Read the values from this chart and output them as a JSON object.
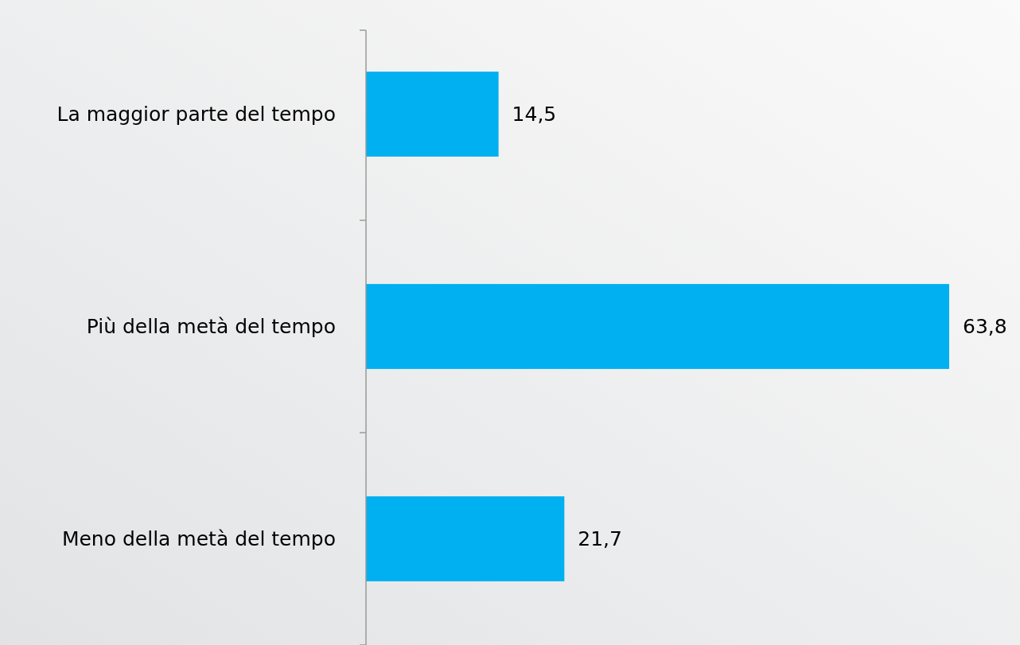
{
  "chart_data": {
    "type": "bar",
    "orientation": "horizontal",
    "categories": [
      "La maggior parte del tempo",
      "Più della metà del tempo",
      "Meno della metà del tempo"
    ],
    "values": [
      14.5,
      63.8,
      21.7
    ],
    "color": "#00b0f0",
    "value_labels": [
      "14,5",
      "63,8",
      "21,7"
    ]
  }
}
